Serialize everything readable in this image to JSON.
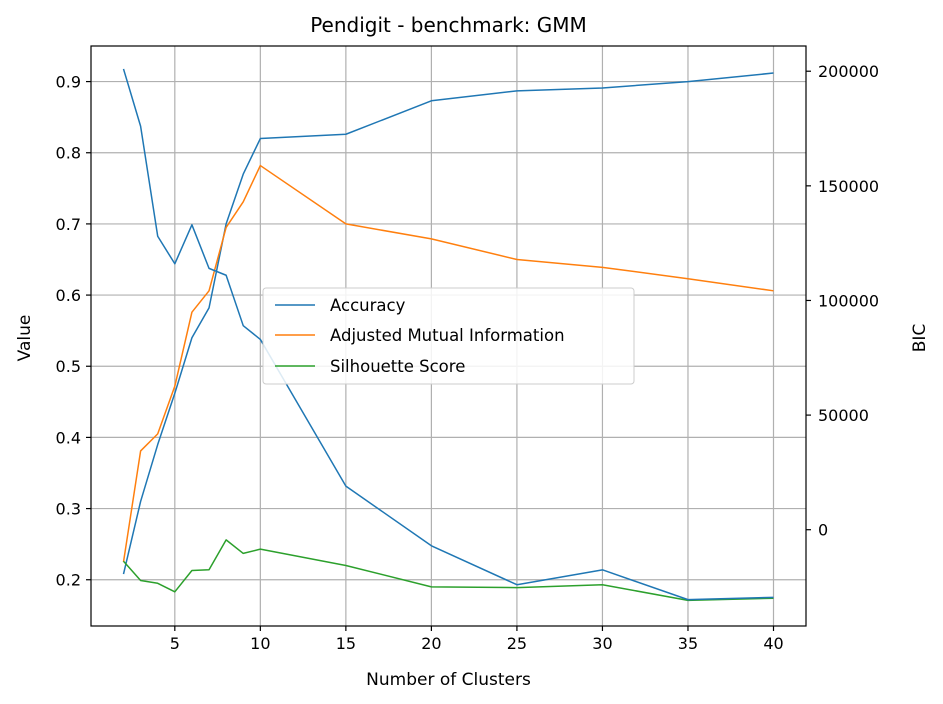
{
  "chart_data": {
    "type": "line",
    "title": "Pendigit - benchmark: GMM",
    "xlabel": "Number of Clusters",
    "ylabel": "Value",
    "y2label": "BIC",
    "xlim": [
      0.1,
      41.9
    ],
    "ylim": [
      0.135,
      0.95
    ],
    "y2lim": [
      -42000,
      211000
    ],
    "xticks": [
      5,
      10,
      15,
      20,
      25,
      30,
      35,
      40
    ],
    "yticks": [
      0.2,
      0.3,
      0.4,
      0.5,
      0.6,
      0.7,
      0.8,
      0.9
    ],
    "y2ticks": [
      0,
      50000,
      100000,
      150000,
      200000
    ],
    "grid": true,
    "legend_position": "center",
    "series": [
      {
        "name": "Accuracy",
        "axis": "left",
        "color": "#1f77b4",
        "x": [
          2,
          3,
          4,
          5,
          6,
          7,
          8,
          9,
          10,
          15,
          20,
          25,
          30,
          35,
          40
        ],
        "y": [
          0.208,
          0.31,
          0.39,
          0.462,
          0.54,
          0.582,
          0.7,
          0.77,
          0.82,
          0.826,
          0.873,
          0.887,
          0.891,
          0.9,
          0.912
        ]
      },
      {
        "name": "Adjusted Mutual Information",
        "axis": "left",
        "color": "#ff7f0e",
        "x": [
          2,
          3,
          4,
          5,
          6,
          7,
          8,
          9,
          10,
          15,
          20,
          25,
          30,
          35,
          40
        ],
        "y": [
          0.225,
          0.381,
          0.405,
          0.472,
          0.576,
          0.606,
          0.695,
          0.731,
          0.782,
          0.7,
          0.679,
          0.65,
          0.639,
          0.623,
          0.606
        ]
      },
      {
        "name": "Silhouette Score",
        "axis": "left",
        "color": "#2ca02c",
        "x": [
          2,
          3,
          4,
          5,
          6,
          7,
          8,
          9,
          10,
          15,
          20,
          25,
          30,
          35,
          40
        ],
        "y": [
          0.226,
          0.199,
          0.195,
          0.183,
          0.213,
          0.214,
          0.256,
          0.237,
          0.243,
          0.22,
          0.19,
          0.189,
          0.193,
          0.171,
          0.174
        ]
      },
      {
        "axis": "right",
        "color": "#1f77b4",
        "x": [
          2,
          3,
          4,
          5,
          6,
          7,
          8,
          9,
          10,
          15,
          20,
          25,
          30,
          35,
          40
        ],
        "y": [
          201000,
          176000,
          128000,
          116000,
          133000,
          114000,
          111000,
          89000,
          83000,
          19000,
          -7000,
          -24000,
          -17500,
          -30500,
          -29500
        ]
      }
    ]
  }
}
